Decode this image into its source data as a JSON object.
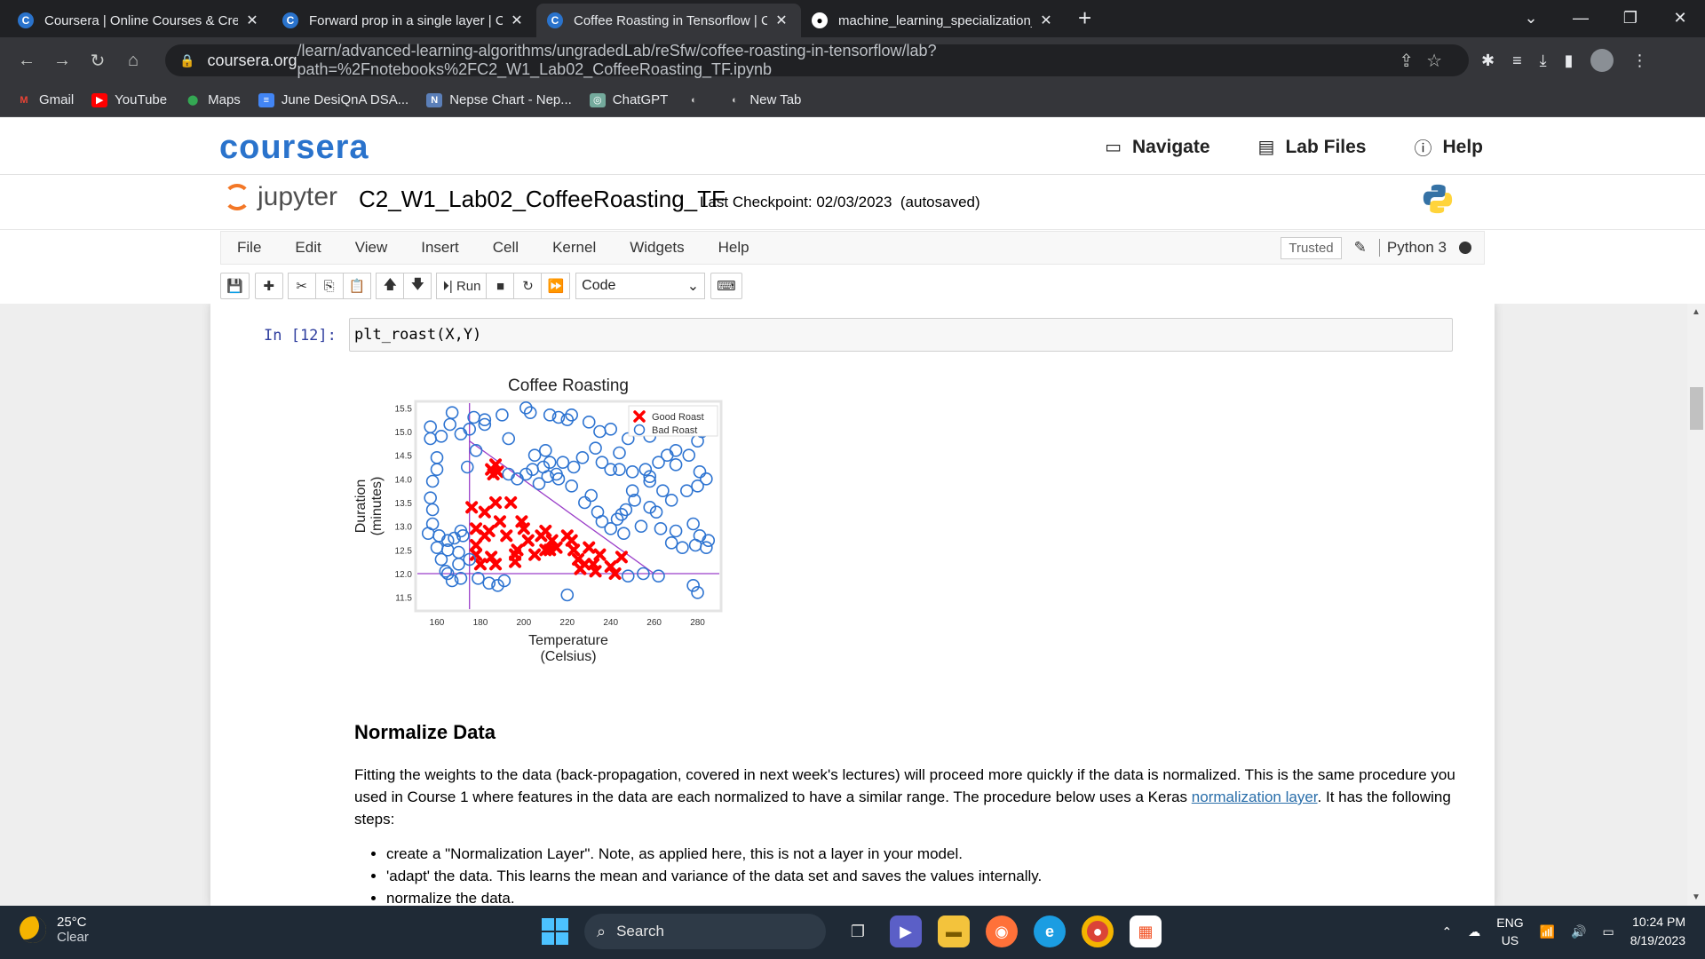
{
  "browser": {
    "tabs": [
      {
        "title": "Coursera | Online Courses & Cre",
        "favicon": "C",
        "active": false
      },
      {
        "title": "Forward prop in a single layer | C",
        "favicon": "C",
        "active": false
      },
      {
        "title": "Coffee Roasting in Tensorflow | C",
        "favicon": "C",
        "active": true
      },
      {
        "title": "machine_learning_specialization_",
        "favicon": "GH",
        "active": false
      }
    ],
    "new_tab": "+",
    "url_domain": "coursera.org",
    "url_path": "/learn/advanced-learning-algorithms/ungradedLab/reSfw/coffee-roasting-in-tensorflow/lab?path=%2Fnotebooks%2FC2_W1_Lab02_CoffeeRoasting_TF.ipynb",
    "bookmarks": [
      {
        "label": "Gmail",
        "icon": "M",
        "color": "#ea4335"
      },
      {
        "label": "YouTube",
        "icon": "▶",
        "color": "#ff0000"
      },
      {
        "label": "Maps",
        "icon": "📍",
        "color": "#34a853"
      },
      {
        "label": "June DesiQnA DSA...",
        "icon": "≡",
        "color": "#4285f4"
      },
      {
        "label": "Nepse Chart - Nep...",
        "icon": "N",
        "color": "#5b7fb8"
      },
      {
        "label": "ChatGPT",
        "icon": "◎",
        "color": "#74aa9c"
      },
      {
        "label": "",
        "icon": "◐",
        "color": "#666"
      },
      {
        "label": "New Tab",
        "icon": "◐",
        "color": "#666"
      }
    ]
  },
  "coursera": {
    "logo": "coursera",
    "navigate": "Navigate",
    "lab_files": "Lab Files",
    "help": "Help"
  },
  "jupyter": {
    "logo_text": "jupyter",
    "notebook_name": "C2_W1_Lab02_CoffeeRoasting_TF",
    "checkpoint": "Last Checkpoint: 02/03/2023",
    "autosaved": "(autosaved)",
    "menu": [
      "File",
      "Edit",
      "View",
      "Insert",
      "Cell",
      "Kernel",
      "Widgets",
      "Help"
    ],
    "trusted": "Trusted",
    "kernel": "Python 3",
    "run_label": "Run",
    "cell_type": "Code"
  },
  "cell": {
    "prompt": "In [12]:",
    "code": "plt_roast(X,Y)"
  },
  "chart_data": {
    "type": "scatter",
    "title": "Coffee Roasting",
    "xlabel": "Temperature\n(Celsius)",
    "ylabel": "Duration\n(minutes)",
    "xlim": [
      151,
      290
    ],
    "ylim": [
      11.25,
      15.6
    ],
    "xticks": [
      160,
      180,
      200,
      220,
      240,
      260,
      280
    ],
    "yticks": [
      11.5,
      12.0,
      12.5,
      13.0,
      13.5,
      14.0,
      14.5,
      15.0,
      15.5
    ],
    "legend_position": "top-right",
    "lines": [
      {
        "x": [
          175,
          175
        ],
        "y": [
          11.25,
          15.6
        ]
      },
      {
        "x": [
          151,
          290
        ],
        "y": [
          12.0,
          12.0
        ]
      },
      {
        "x": [
          175,
          260
        ],
        "y": [
          14.8,
          12.0
        ]
      }
    ],
    "series": [
      {
        "name": "Good Roast",
        "marker": "x",
        "color": "#ff0000",
        "points": [
          [
            185,
            14.2
          ],
          [
            186,
            14.1
          ],
          [
            187,
            14.3
          ],
          [
            188,
            14.15
          ],
          [
            176,
            13.4
          ],
          [
            187,
            13.5
          ],
          [
            194,
            13.5
          ],
          [
            182,
            13.3
          ],
          [
            189,
            13.1
          ],
          [
            199,
            13.1
          ],
          [
            184,
            12.9
          ],
          [
            200,
            12.95
          ],
          [
            178,
            12.95
          ],
          [
            182,
            12.8
          ],
          [
            192,
            12.8
          ],
          [
            208,
            12.8
          ],
          [
            210,
            12.9
          ],
          [
            202,
            12.7
          ],
          [
            213,
            12.7
          ],
          [
            220,
            12.8
          ],
          [
            222,
            12.7
          ],
          [
            178,
            12.6
          ],
          [
            197,
            12.5
          ],
          [
            210,
            12.5
          ],
          [
            212,
            12.5
          ],
          [
            215,
            12.55
          ],
          [
            223,
            12.5
          ],
          [
            230,
            12.55
          ],
          [
            178,
            12.4
          ],
          [
            185,
            12.35
          ],
          [
            196,
            12.4
          ],
          [
            205,
            12.4
          ],
          [
            225,
            12.3
          ],
          [
            235,
            12.4
          ],
          [
            245,
            12.35
          ],
          [
            180,
            12.2
          ],
          [
            187,
            12.2
          ],
          [
            196,
            12.25
          ],
          [
            228,
            12.2
          ],
          [
            232,
            12.2
          ],
          [
            240,
            12.15
          ],
          [
            226,
            12.1
          ],
          [
            233,
            12.05
          ],
          [
            242,
            12.0
          ]
        ]
      },
      {
        "name": "Bad Roast",
        "marker": "o",
        "color": "#2e74d1",
        "points": [
          [
            167,
            15.4
          ],
          [
            177,
            15.3
          ],
          [
            182,
            15.25
          ],
          [
            190,
            15.35
          ],
          [
            201,
            15.5
          ],
          [
            203,
            15.4
          ],
          [
            212,
            15.35
          ],
          [
            216,
            15.3
          ],
          [
            220,
            15.25
          ],
          [
            222,
            15.35
          ],
          [
            230,
            15.2
          ],
          [
            235,
            15.0
          ],
          [
            240,
            15.05
          ],
          [
            248,
            14.85
          ],
          [
            258,
            14.9
          ],
          [
            262,
            15.2
          ],
          [
            272,
            15.3
          ],
          [
            282,
            15.0
          ],
          [
            280,
            14.8
          ],
          [
            157,
            15.1
          ],
          [
            157,
            14.85
          ],
          [
            162,
            14.9
          ],
          [
            166,
            15.15
          ],
          [
            171,
            14.95
          ],
          [
            175,
            15.05
          ],
          [
            182,
            15.15
          ],
          [
            193,
            14.85
          ],
          [
            205,
            14.5
          ],
          [
            210,
            14.6
          ],
          [
            212,
            14.35
          ],
          [
            204,
            14.2
          ],
          [
            209,
            14.25
          ],
          [
            211,
            14.05
          ],
          [
            215,
            14.1
          ],
          [
            218,
            14.35
          ],
          [
            223,
            14.25
          ],
          [
            227,
            14.45
          ],
          [
            233,
            14.65
          ],
          [
            236,
            14.35
          ],
          [
            240,
            14.2
          ],
          [
            244,
            14.2
          ],
          [
            250,
            14.15
          ],
          [
            256,
            14.2
          ],
          [
            262,
            14.35
          ],
          [
            266,
            14.5
          ],
          [
            270,
            14.6
          ],
          [
            270,
            14.3
          ],
          [
            276,
            14.5
          ],
          [
            281,
            14.15
          ],
          [
            284,
            14.0
          ],
          [
            258,
            13.95
          ],
          [
            264,
            13.75
          ],
          [
            268,
            13.55
          ],
          [
            275,
            13.75
          ],
          [
            280,
            13.85
          ],
          [
            251,
            13.55
          ],
          [
            258,
            13.4
          ],
          [
            261,
            13.3
          ],
          [
            247,
            13.35
          ],
          [
            243,
            13.15
          ],
          [
            240,
            12.95
          ],
          [
            246,
            12.85
          ],
          [
            254,
            13.0
          ],
          [
            263,
            12.95
          ],
          [
            270,
            12.9
          ],
          [
            278,
            13.05
          ],
          [
            281,
            12.8
          ],
          [
            285,
            12.7
          ],
          [
            268,
            12.65
          ],
          [
            273,
            12.55
          ],
          [
            279,
            12.6
          ],
          [
            284,
            12.55
          ],
          [
            160,
            14.45
          ],
          [
            160,
            14.2
          ],
          [
            158,
            13.95
          ],
          [
            157,
            13.6
          ],
          [
            158,
            13.35
          ],
          [
            158,
            13.05
          ],
          [
            156,
            12.85
          ],
          [
            161,
            12.8
          ],
          [
            165,
            12.7
          ],
          [
            168,
            12.75
          ],
          [
            171,
            12.9
          ],
          [
            172,
            12.8
          ],
          [
            160,
            12.55
          ],
          [
            165,
            12.5
          ],
          [
            170,
            12.45
          ],
          [
            162,
            12.3
          ],
          [
            170,
            12.2
          ],
          [
            175,
            12.3
          ],
          [
            164,
            12.05
          ],
          [
            167,
            11.85
          ],
          [
            171,
            11.9
          ],
          [
            179,
            11.9
          ],
          [
            184,
            11.8
          ],
          [
            188,
            11.75
          ],
          [
            191,
            11.85
          ],
          [
            220,
            11.55
          ],
          [
            248,
            11.95
          ],
          [
            255,
            12.0
          ],
          [
            262,
            11.95
          ],
          [
            278,
            11.75
          ],
          [
            280,
            11.6
          ],
          [
            165,
            12.0
          ],
          [
            228,
            13.5
          ],
          [
            234,
            13.3
          ],
          [
            236,
            13.1
          ],
          [
            245,
            13.25
          ],
          [
            231,
            13.65
          ],
          [
            250,
            13.75
          ],
          [
            216,
            14.0
          ],
          [
            222,
            13.85
          ],
          [
            207,
            13.9
          ],
          [
            197,
            14.0
          ],
          [
            201,
            14.1
          ],
          [
            174,
            14.25
          ],
          [
            178,
            14.6
          ],
          [
            193,
            14.1
          ],
          [
            244,
            14.55
          ],
          [
            258,
            14.05
          ]
        ]
      }
    ]
  },
  "markdown": {
    "heading": "Normalize Data",
    "p1_a": "Fitting the weights to the data (back-propagation, covered in next week's lectures) will proceed more quickly if the data is normalized. This is the same procedure you used in Course 1 where features in the data are each normalized to have a similar range. The procedure below uses a Keras ",
    "p1_link": "normalization layer",
    "p1_b": ". It has the following steps:",
    "bullets": [
      "create a \"Normalization Layer\". Note, as applied here, this is not a layer in your model.",
      "'adapt' the data. This learns the mean and variance of the data set and saves the values internally.",
      "normalize the data."
    ]
  },
  "taskbar": {
    "temperature": "25°C",
    "weather": "Clear",
    "search": "Search",
    "lang": "ENG",
    "region": "US",
    "time": "10:24 PM",
    "date": "8/19/2023"
  }
}
